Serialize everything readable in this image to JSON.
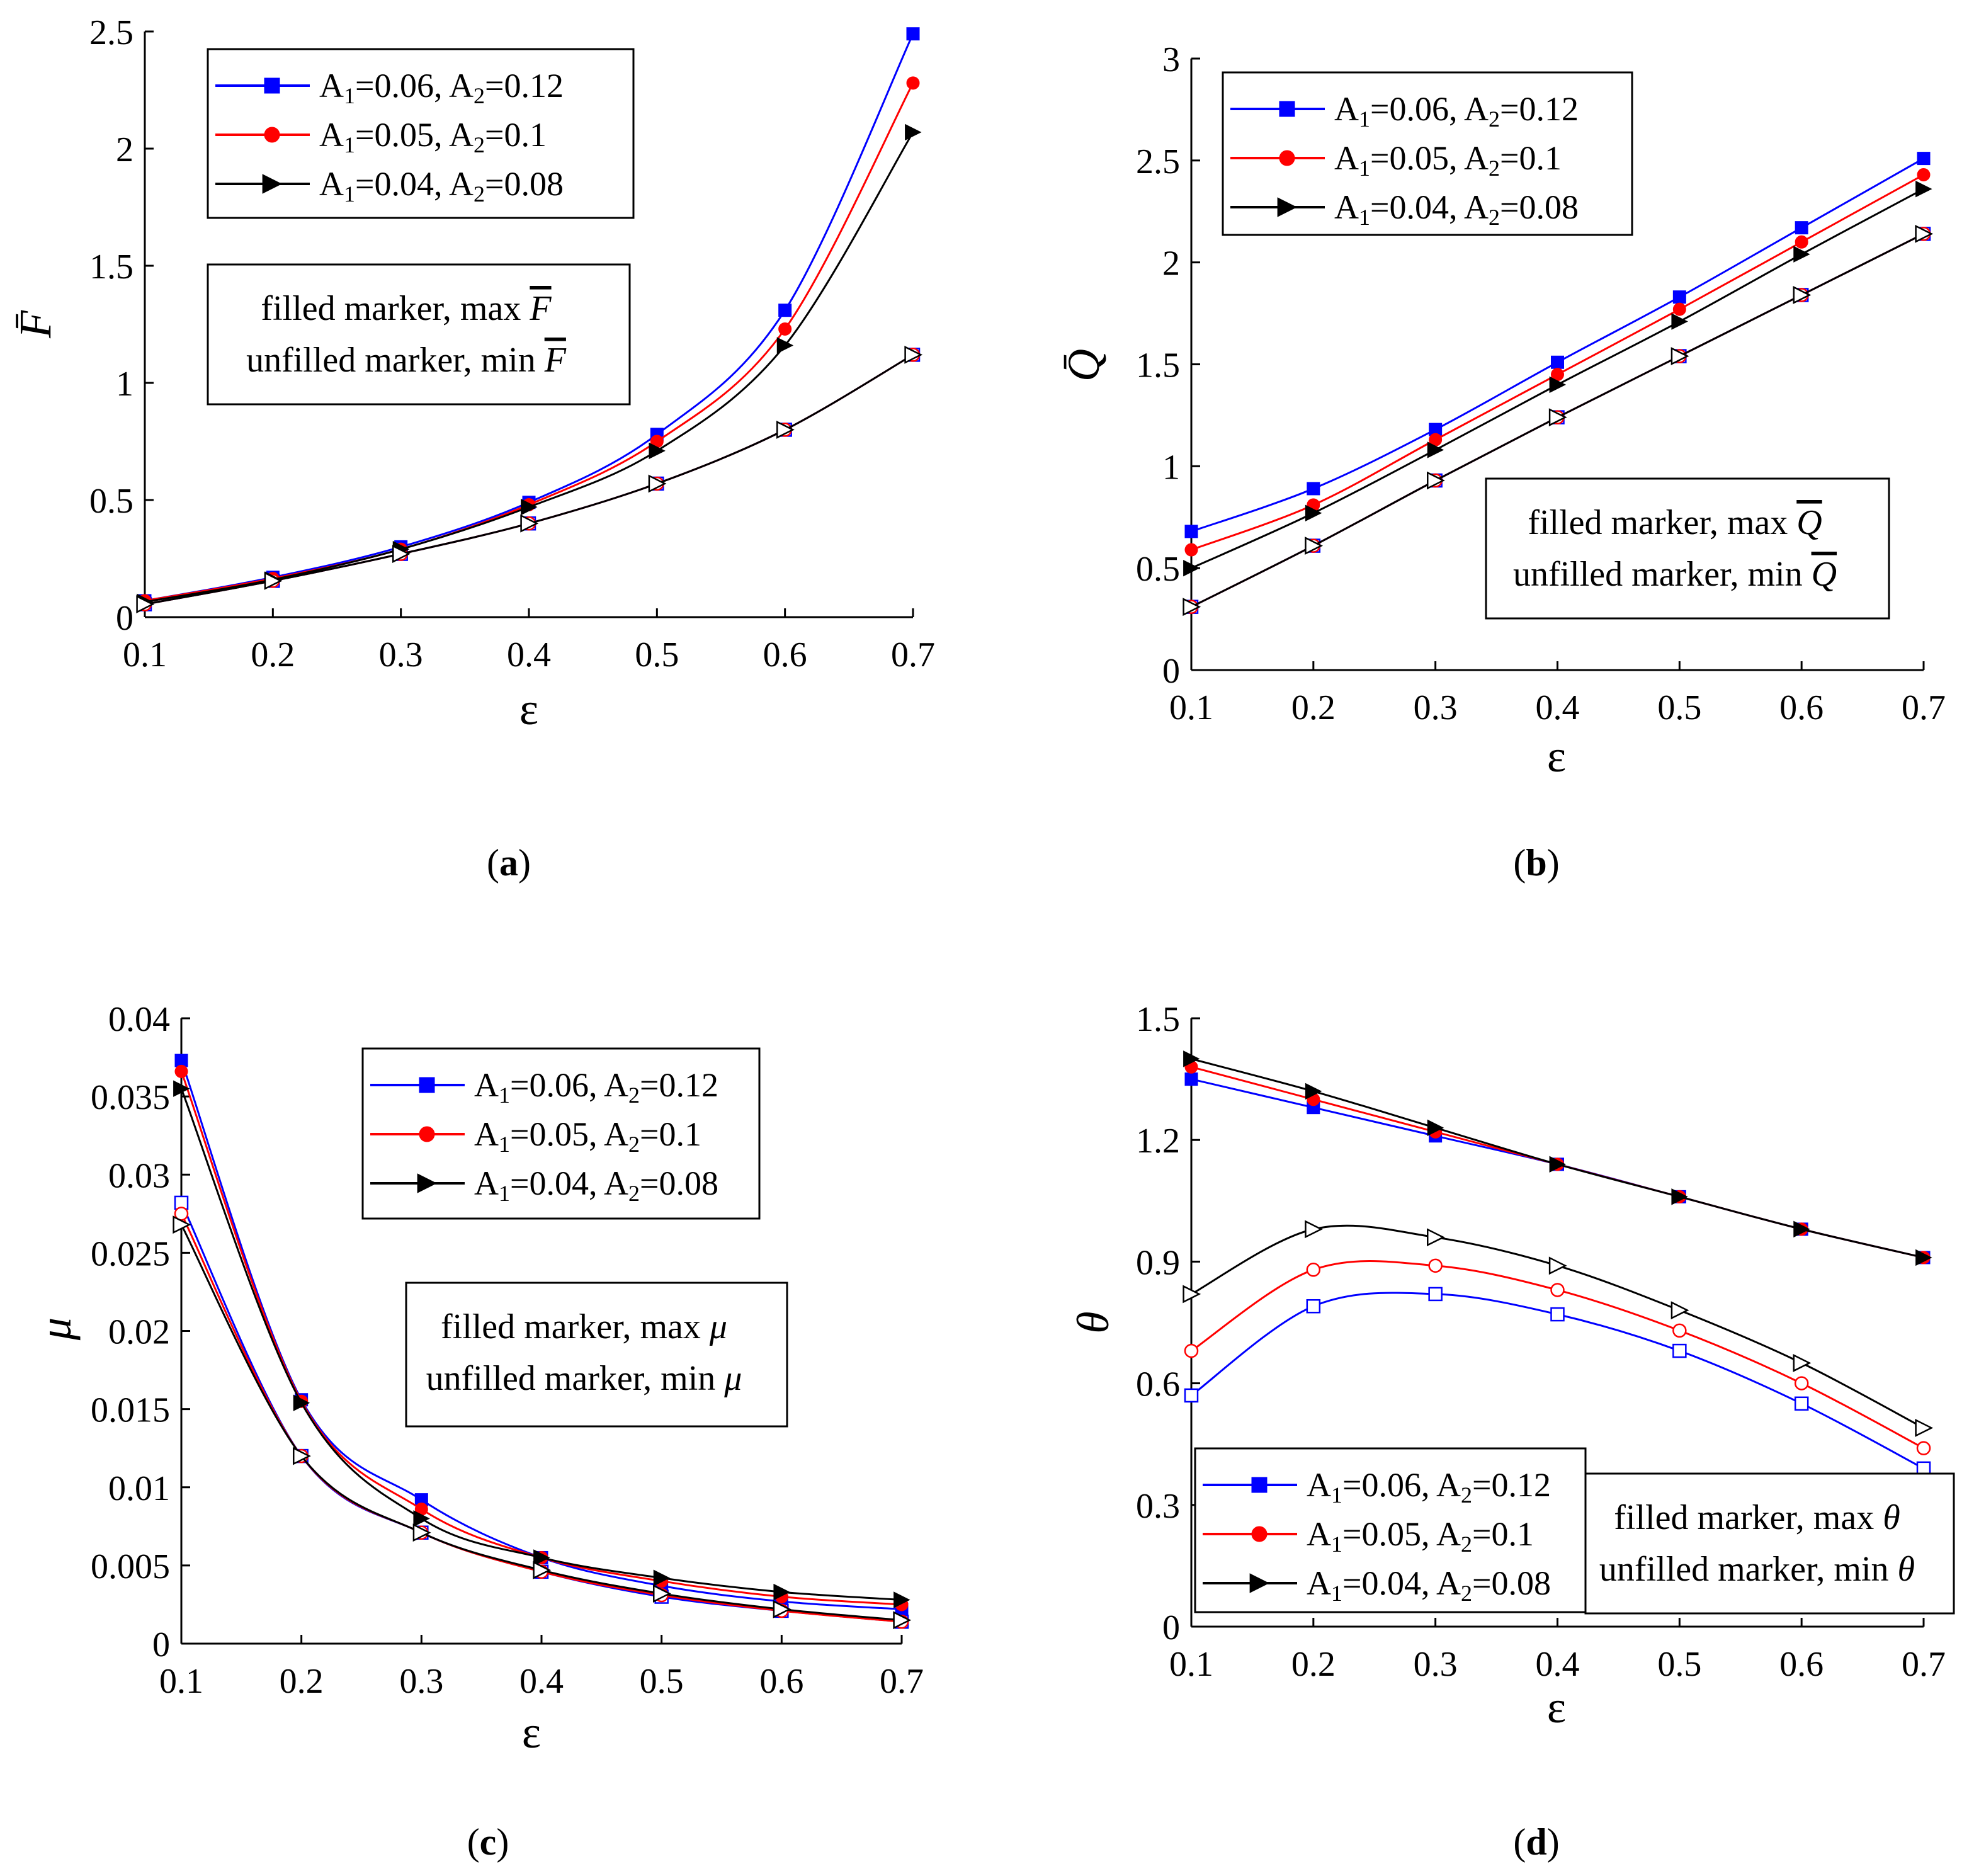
{
  "series_legend": [
    {
      "A1": "0.06",
      "A2": "0.12",
      "color": "#0000ff",
      "marker": "square"
    },
    {
      "A1": "0.05",
      "A2": "0.1",
      "color": "#ff0000",
      "marker": "circle"
    },
    {
      "A1": "0.04",
      "A2": "0.08",
      "color": "#000000",
      "marker": "triangle-right"
    }
  ],
  "chart_data": [
    {
      "id": "a",
      "type": "line",
      "panel_label": "a",
      "xlabel": "ε",
      "ylabel": "F̄",
      "ysym": "F",
      "x": [
        0.1,
        0.2,
        0.3,
        0.4,
        0.5,
        0.6,
        0.7
      ],
      "xlim": [
        0.1,
        0.7
      ],
      "ylim": [
        0,
        2.5
      ],
      "xticks": [
        "0.1",
        "0.2",
        "0.3",
        "0.4",
        "0.5",
        "0.6",
        "0.7"
      ],
      "yticks": [
        "0",
        "0.5",
        "1",
        "1.5",
        "2",
        "2.5"
      ],
      "note": {
        "line1": "filled marker, max",
        "line2": "unfilled marker, min"
      },
      "series": [
        {
          "name": "A1=0.06, A2=0.12",
          "max": [
            0.07,
            0.17,
            0.3,
            0.49,
            0.78,
            1.31,
            2.49
          ],
          "min": [
            0.055,
            0.155,
            0.27,
            0.4,
            0.57,
            0.8,
            1.12
          ]
        },
        {
          "name": "A1=0.05, A2=0.1",
          "max": [
            0.07,
            0.165,
            0.29,
            0.48,
            0.75,
            1.23,
            2.28
          ],
          "min": [
            0.055,
            0.155,
            0.27,
            0.4,
            0.57,
            0.8,
            1.12
          ]
        },
        {
          "name": "A1=0.04, A2=0.08",
          "max": [
            0.065,
            0.16,
            0.29,
            0.47,
            0.71,
            1.16,
            2.07
          ],
          "min": [
            0.055,
            0.155,
            0.27,
            0.4,
            0.57,
            0.8,
            1.12
          ]
        }
      ]
    },
    {
      "id": "b",
      "type": "line",
      "panel_label": "b",
      "xlabel": "ε",
      "ylabel": "Q̄",
      "ysym": "Q",
      "x": [
        0.1,
        0.2,
        0.3,
        0.4,
        0.5,
        0.6,
        0.7
      ],
      "xlim": [
        0.1,
        0.7
      ],
      "ylim": [
        0,
        3
      ],
      "xticks": [
        "0.1",
        "0.2",
        "0.3",
        "0.4",
        "0.5",
        "0.6",
        "0.7"
      ],
      "yticks": [
        "0",
        "0.5",
        "1",
        "1.5",
        "2",
        "2.5",
        "3"
      ],
      "note": {
        "line1": "filled marker, max",
        "line2": "unfilled marker, min"
      },
      "series": [
        {
          "name": "A1=0.06, A2=0.12",
          "max": [
            0.68,
            0.89,
            1.18,
            1.51,
            1.83,
            2.17,
            2.51
          ],
          "min": [
            0.31,
            0.61,
            0.93,
            1.24,
            1.54,
            1.84,
            2.14
          ]
        },
        {
          "name": "A1=0.05, A2=0.1",
          "max": [
            0.59,
            0.81,
            1.13,
            1.45,
            1.77,
            2.1,
            2.43
          ],
          "min": [
            0.31,
            0.61,
            0.93,
            1.24,
            1.54,
            1.84,
            2.14
          ]
        },
        {
          "name": "A1=0.04, A2=0.08",
          "max": [
            0.5,
            0.77,
            1.08,
            1.4,
            1.71,
            2.04,
            2.36
          ],
          "min": [
            0.31,
            0.61,
            0.93,
            1.24,
            1.54,
            1.84,
            2.14
          ]
        }
      ]
    },
    {
      "id": "c",
      "type": "line",
      "panel_label": "c",
      "xlabel": "ε",
      "ylabel": "μ",
      "ysym": "μ",
      "x": [
        0.1,
        0.2,
        0.3,
        0.4,
        0.5,
        0.6,
        0.7
      ],
      "xlim": [
        0.1,
        0.7
      ],
      "ylim": [
        0,
        0.04
      ],
      "xticks": [
        "0.1",
        "0.2",
        "0.3",
        "0.4",
        "0.5",
        "0.6",
        "0.7"
      ],
      "yticks": [
        "0",
        "0.005",
        "0.01",
        "0.015",
        "0.02",
        "0.025",
        "0.03",
        "0.035",
        "0.04"
      ],
      "note": {
        "line1": "filled marker, max",
        "line2": "unfilled marker, min"
      },
      "series": [
        {
          "name": "A1=0.06, A2=0.12",
          "max": [
            0.0373,
            0.0156,
            0.0092,
            0.0055,
            0.0037,
            0.0027,
            0.0022
          ],
          "min": [
            0.0282,
            0.012,
            0.0071,
            0.0046,
            0.003,
            0.0021,
            0.0014
          ]
        },
        {
          "name": "A1=0.05, A2=0.1",
          "max": [
            0.0366,
            0.0155,
            0.0086,
            0.0055,
            0.004,
            0.003,
            0.0025
          ],
          "min": [
            0.0275,
            0.012,
            0.0071,
            0.0046,
            0.0031,
            0.0021,
            0.0014
          ]
        },
        {
          "name": "A1=0.04, A2=0.08",
          "max": [
            0.0355,
            0.0154,
            0.008,
            0.0055,
            0.0042,
            0.0033,
            0.0028
          ],
          "min": [
            0.0268,
            0.012,
            0.0071,
            0.0047,
            0.0032,
            0.0022,
            0.0015
          ]
        }
      ]
    },
    {
      "id": "d",
      "type": "line",
      "panel_label": "d",
      "xlabel": "ε",
      "ylabel": "θ",
      "ysym": "θ",
      "x": [
        0.1,
        0.2,
        0.3,
        0.4,
        0.5,
        0.6,
        0.7
      ],
      "xlim": [
        0.1,
        0.7
      ],
      "ylim": [
        0,
        1.5
      ],
      "xticks": [
        "0.1",
        "0.2",
        "0.3",
        "0.4",
        "0.5",
        "0.6",
        "0.7"
      ],
      "yticks": [
        "0",
        "0.3",
        "0.6",
        "0.9",
        "1.2",
        "1.5"
      ],
      "note": {
        "line1": "filled marker, max",
        "line2": "unfilled marker, min"
      },
      "series": [
        {
          "name": "A1=0.06, A2=0.12",
          "max": [
            1.35,
            1.28,
            1.21,
            1.14,
            1.06,
            0.98,
            0.91
          ],
          "min": [
            0.57,
            0.79,
            0.82,
            0.77,
            0.68,
            0.55,
            0.39
          ]
        },
        {
          "name": "A1=0.05, A2=0.1",
          "max": [
            1.38,
            1.3,
            1.22,
            1.14,
            1.06,
            0.98,
            0.91
          ],
          "min": [
            0.68,
            0.88,
            0.89,
            0.83,
            0.73,
            0.6,
            0.44
          ]
        },
        {
          "name": "A1=0.04, A2=0.08",
          "max": [
            1.4,
            1.32,
            1.23,
            1.14,
            1.06,
            0.98,
            0.91
          ],
          "min": [
            0.82,
            0.98,
            0.96,
            0.89,
            0.78,
            0.65,
            0.49
          ]
        }
      ]
    }
  ]
}
